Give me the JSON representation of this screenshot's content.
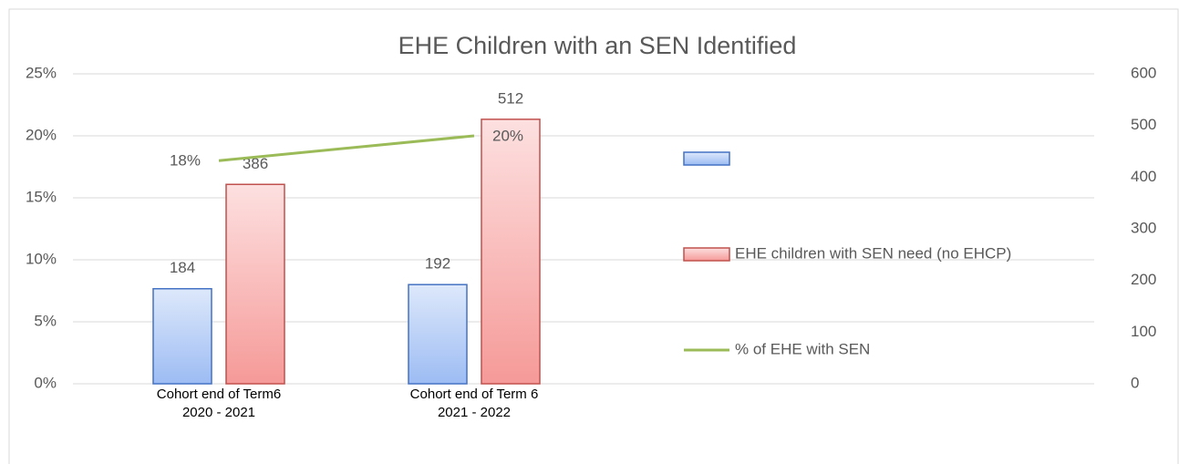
{
  "chart_data": {
    "type": "bar",
    "title": "EHE Children with an SEN Identified",
    "categories": [
      "Cohort end of Term6\n2020 - 2021",
      "Cohort end of Term 6\n2021 - 2022"
    ],
    "series": [
      {
        "color": "#4472c4",
        "axis": "y2",
        "values": [
          184,
          192
        ]
      },
      {
        "name": "EHE children with SEN need (no EHCP)",
        "color": "#c0504d",
        "axis": "y2",
        "values": [
          386,
          512
        ]
      },
      {
        "name": "% of EHE with SEN",
        "type": "line",
        "color": "#9bbb59",
        "axis": "y",
        "values": [
          18,
          20
        ],
        "value_labels": [
          "18%",
          "20%"
        ]
      }
    ],
    "ylim": [
      0,
      25
    ],
    "yticks": [
      {
        "value": 0,
        "label": "0%"
      },
      {
        "value": 5,
        "label": "5%"
      },
      {
        "value": 10,
        "label": "10%"
      },
      {
        "value": 15,
        "label": "15%"
      },
      {
        "value": 20,
        "label": "20%"
      },
      {
        "value": 25,
        "label": "25%"
      }
    ],
    "y2lim": [
      0,
      600
    ],
    "y2ticks": [
      0,
      100,
      200,
      300,
      400,
      500,
      600
    ],
    "grid": true,
    "legend": "right"
  }
}
